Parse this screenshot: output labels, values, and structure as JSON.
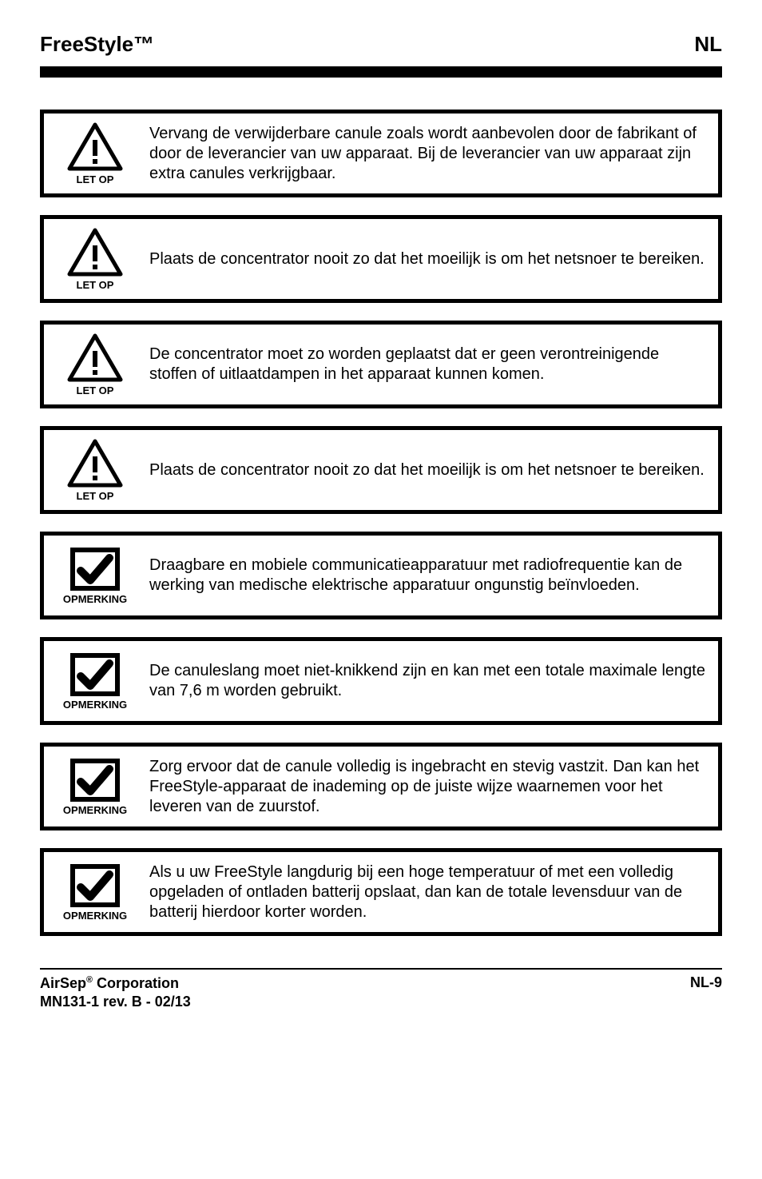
{
  "header": {
    "title": "FreeStyle™",
    "lang": "NL"
  },
  "icons": {
    "caution_label": "LET OP",
    "note_label": "OPMERKING"
  },
  "notices": [
    {
      "type": "caution",
      "text": "Vervang de verwijderbare canule zoals wordt aanbevolen door de fabrikant of door de leverancier van uw apparaat. Bij de leverancier van uw apparaat zijn extra canules verkrijgbaar."
    },
    {
      "type": "caution",
      "text": "Plaats de concentrator nooit zo dat het moeilijk is om het netsnoer te bereiken."
    },
    {
      "type": "caution",
      "text": "De concentrator moet zo worden geplaatst dat er geen verontreinigende stoffen of uitlaatdampen in het apparaat kunnen komen."
    },
    {
      "type": "caution",
      "text": "Plaats de concentrator nooit zo dat het moeilijk is om het netsnoer te bereiken."
    },
    {
      "type": "note",
      "text": "Draagbare en mobiele communicatieapparatuur met radiofrequentie kan de werking van medische elektrische apparatuur ongunstig beïnvloeden."
    },
    {
      "type": "note",
      "text": "De canuleslang moet niet-knikkend zijn en kan met een totale maximale lengte van 7,6 m worden gebruikt."
    },
    {
      "type": "note",
      "text": "Zorg ervoor dat de canule volledig is ingebracht en stevig vastzit. Dan kan het FreeStyle-apparaat de inademing op de juiste wijze waarnemen voor het leveren van de zuurstof."
    },
    {
      "type": "note",
      "text": "Als u uw FreeStyle langdurig bij een hoge temperatuur of met een volledig opgeladen of ontladen batterij opslaat, dan kan de totale levensduur van de batterij hierdoor korter worden."
    }
  ],
  "footer": {
    "company_html": "AirSep<sup>®</sup> Corporation",
    "rev": "MN131-1 rev. B - 02/13",
    "page": "NL-9"
  },
  "style": {
    "border_color": "#000000",
    "background": "#ffffff",
    "text_color": "#000000"
  }
}
